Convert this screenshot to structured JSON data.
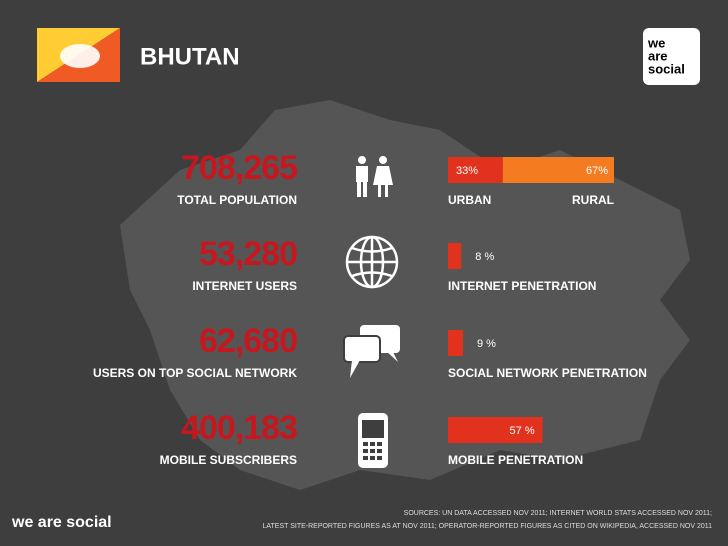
{
  "header": {
    "title": "BHUTAN",
    "logo": [
      "we",
      "are",
      "social"
    ]
  },
  "stats": [
    {
      "figure": "708,265",
      "label": "TOTAL POPULATION",
      "segments": [
        {
          "value": 33,
          "label": "33%",
          "color": "#e2321e"
        },
        {
          "value": 67,
          "label": "67%",
          "color": "#f47b20"
        }
      ],
      "captions": [
        "URBAN",
        "RURAL"
      ]
    },
    {
      "figure": "53,280",
      "label": "INTERNET USERS",
      "segments": [
        {
          "value": 8,
          "label": "8 %",
          "color": "#e2321e"
        }
      ],
      "captions": [
        "INTERNET PENETRATION"
      ]
    },
    {
      "figure": "62,680",
      "label": "USERS ON TOP SOCIAL NETWORK",
      "segments": [
        {
          "value": 9,
          "label": "9 %",
          "color": "#e2321e"
        }
      ],
      "captions": [
        "SOCIAL NETWORK PENETRATION"
      ]
    },
    {
      "figure": "400,183",
      "label": "MOBILE SUBSCRIBERS",
      "segments": [
        {
          "value": 57,
          "label": "57 %",
          "color": "#e2321e"
        }
      ],
      "captions": [
        "MOBILE PENETRATION"
      ]
    }
  ],
  "footer": {
    "brand": "we are social",
    "sources": [
      "SOURCES: UN DATA ACCESSED NOV 2011; INTERNET WORLD STATS ACCESSED NOV 2011;",
      "LATEST SITE-REPORTED FIGURES AS AT NOV 2011; OPERATOR-REPORTED FIGURES AS CITED ON WIKIPEDIA, ACCESSED NOV 2011"
    ]
  }
}
